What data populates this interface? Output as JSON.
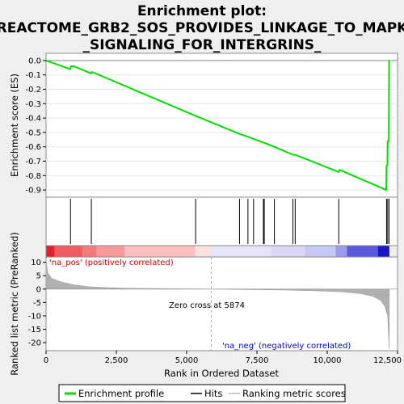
{
  "title_lines": [
    "Enrichment plot:",
    "REACTOME_GRB2_SOS_PROVIDES_LINKAGE_TO_MAPK",
    "_SIGNALING_FOR_INTERGRINS_"
  ],
  "chart_data": {
    "type": "line",
    "xlim": [
      0,
      12500
    ],
    "x_ticks": [
      0,
      2500,
      5000,
      7500,
      10000,
      12500
    ],
    "x_tick_labels": [
      "0",
      "2,500",
      "5,000",
      "7,500",
      "10,000",
      "12,500"
    ],
    "xlabel": "Rank in Ordered Dataset",
    "es_panel": {
      "ylabel": "Enrichment score (ES)",
      "ylim": [
        -0.95,
        0.05
      ],
      "y_ticks": [
        0.0,
        -0.1,
        -0.2,
        -0.3,
        -0.4,
        -0.5,
        -0.6,
        -0.7,
        -0.8,
        -0.9
      ],
      "y_tick_labels": [
        "0.0",
        "-0.1",
        "-0.2",
        "-0.3",
        "-0.4",
        "-0.5",
        "-0.6",
        "-0.7",
        "-0.8",
        "-0.9"
      ],
      "series": [
        {
          "color": "#00dd00",
          "points": [
            [
              0,
              0.0
            ],
            [
              870,
              -0.06
            ],
            [
              880,
              -0.04
            ],
            [
              1000,
              -0.04
            ],
            [
              1600,
              -0.09
            ],
            [
              1620,
              -0.08
            ],
            [
              1700,
              -0.085
            ],
            [
              5320,
              -0.385
            ],
            [
              6880,
              -0.51
            ],
            [
              7180,
              -0.53
            ],
            [
              7380,
              -0.545
            ],
            [
              7730,
              -0.57
            ],
            [
              7760,
              -0.572
            ],
            [
              8120,
              -0.6
            ],
            [
              8780,
              -0.655
            ],
            [
              8860,
              -0.655
            ],
            [
              10410,
              -0.775
            ],
            [
              10440,
              -0.76
            ],
            [
              12100,
              -0.9
            ],
            [
              12110,
              -0.73
            ],
            [
              12140,
              -0.73
            ],
            [
              12150,
              -0.56
            ],
            [
              12190,
              -0.56
            ],
            [
              12200,
              0.0
            ]
          ]
        }
      ],
      "hit_ranks": [
        870,
        1610,
        5320,
        6880,
        7180,
        7380,
        7730,
        7760,
        8120,
        8780,
        8860,
        10410,
        12110,
        12150,
        12200
      ]
    },
    "metric_panel": {
      "ylabel": "Ranked list metric (PreRanked)",
      "ylim": [
        -23,
        12
      ],
      "y_ticks": [
        10,
        5,
        0,
        -5,
        -10,
        -15,
        -20
      ],
      "y_tick_labels": [
        "10",
        "5",
        "0",
        "-5",
        "-10",
        "-15",
        "-20"
      ],
      "profile": [
        [
          0,
          11
        ],
        [
          60,
          6
        ],
        [
          200,
          4
        ],
        [
          500,
          2.8
        ],
        [
          1000,
          1.6
        ],
        [
          1500,
          0.9
        ],
        [
          2000,
          0.6
        ],
        [
          3000,
          0.3
        ],
        [
          4500,
          0.15
        ],
        [
          5874,
          0
        ],
        [
          7000,
          -0.15
        ],
        [
          8500,
          -0.35
        ],
        [
          9500,
          -0.6
        ],
        [
          10500,
          -1.0
        ],
        [
          11200,
          -1.7
        ],
        [
          11600,
          -2.6
        ],
        [
          11900,
          -4.2
        ],
        [
          12050,
          -6.5
        ],
        [
          12150,
          -10
        ],
        [
          12200,
          -22.5
        ],
        [
          12210,
          0
        ]
      ],
      "zero_cross_rank": 5874,
      "zero_cross_label": "Zero cross at 5874",
      "pos_label": "'na_pos' (positively correlated)",
      "neg_label": "'na_neg' (negatively correlated)"
    },
    "color_bar_segments": [
      {
        "start": 0,
        "end": 300,
        "color": "#e0202a"
      },
      {
        "start": 300,
        "end": 1300,
        "color": "#f05a60"
      },
      {
        "start": 1300,
        "end": 1800,
        "color": "#f47a7e"
      },
      {
        "start": 1800,
        "end": 2800,
        "color": "#f89a9c"
      },
      {
        "start": 2800,
        "end": 5300,
        "color": "#fcc0c0"
      },
      {
        "start": 5300,
        "end": 5874,
        "color": "#fde0e0"
      },
      {
        "start": 5874,
        "end": 8000,
        "color": "#e4e4fa"
      },
      {
        "start": 8000,
        "end": 9200,
        "color": "#d8d8f6"
      },
      {
        "start": 9200,
        "end": 10300,
        "color": "#c8c8f2"
      },
      {
        "start": 10300,
        "end": 10700,
        "color": "#9c9cea"
      },
      {
        "start": 10700,
        "end": 11800,
        "color": "#5a5ade"
      },
      {
        "start": 11800,
        "end": 12210,
        "color": "#1818c8"
      }
    ]
  },
  "legend": {
    "items": [
      {
        "label": "Enrichment profile",
        "color": "#00dd00"
      },
      {
        "label": "Hits",
        "color": "#000000"
      },
      {
        "label": "Ranking metric scores",
        "color": "#bbbbbb"
      }
    ]
  }
}
